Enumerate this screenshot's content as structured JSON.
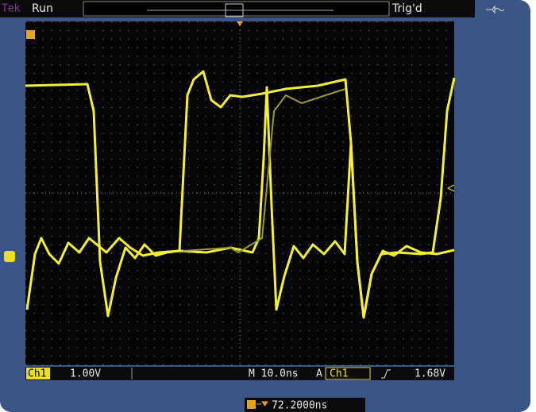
{
  "header": {
    "brand": "Tek",
    "state": "Run",
    "trigger_status": "Trig'd"
  },
  "status_bar": {
    "channel": "Ch1",
    "scale": "1.00V",
    "timebase": "M 10.0ns",
    "trigger_mode": "A",
    "trigger_channel": "Ch1",
    "trigger_level": "1.68V"
  },
  "footer": {
    "delay": "72.2000ns"
  }
}
